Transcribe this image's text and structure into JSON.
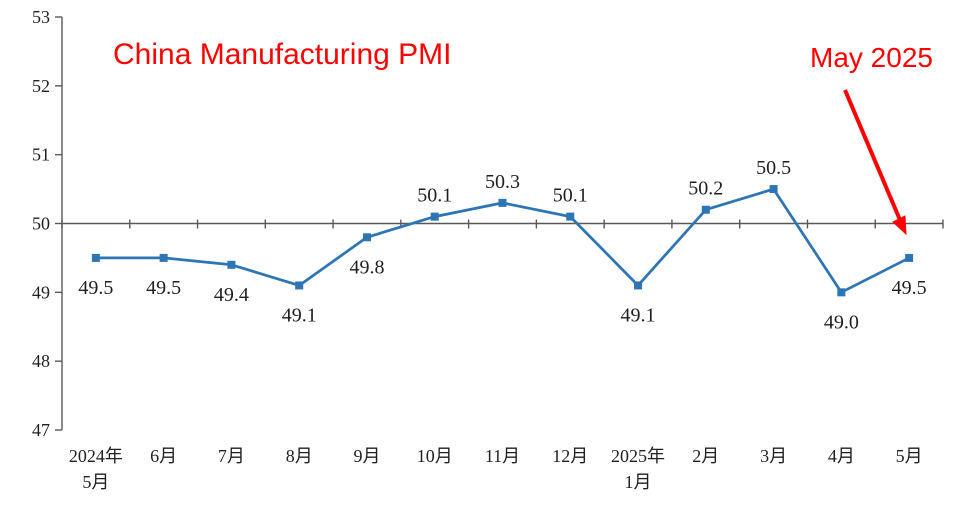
{
  "page": {
    "background": "#FFFFFF"
  },
  "chart_data": {
    "type": "line",
    "title": "China Manufacturing PMI",
    "title_color": "#FF0000",
    "annotation": {
      "text": "May 2025",
      "color": "#FF0000"
    },
    "categories": [
      [
        "2024年",
        "5月"
      ],
      [
        "6月"
      ],
      [
        "7月"
      ],
      [
        "8月"
      ],
      [
        "9月"
      ],
      [
        "10月"
      ],
      [
        "11月"
      ],
      [
        "12月"
      ],
      [
        "2025年",
        "1月"
      ],
      [
        "2月"
      ],
      [
        "3月"
      ],
      [
        "4月"
      ],
      [
        "5月"
      ]
    ],
    "values": [
      49.5,
      49.5,
      49.4,
      49.1,
      49.8,
      50.1,
      50.3,
      50.1,
      49.1,
      50.2,
      50.5,
      49.0,
      49.5
    ],
    "data_labels": [
      "49.5",
      "49.5",
      "49.4",
      "49.1",
      "49.8",
      "50.1",
      "50.3",
      "50.1",
      "49.1",
      "50.2",
      "50.5",
      "49.0",
      "49.5"
    ],
    "label_positions": [
      "below",
      "below",
      "below",
      "below",
      "below",
      "above",
      "above",
      "above",
      "below",
      "above",
      "above",
      "below",
      "below"
    ],
    "ylim": [
      47,
      53
    ],
    "ytick_step": 1,
    "ytick_labels": [
      "53",
      "52",
      "51",
      "50",
      "49",
      "48",
      "47"
    ],
    "axis_cross_value": 50,
    "line_color": "#2E75B6",
    "marker": "square",
    "axis_color": "#595959",
    "text_color": "#1F1F1F",
    "grid": "off",
    "legend": "none"
  }
}
